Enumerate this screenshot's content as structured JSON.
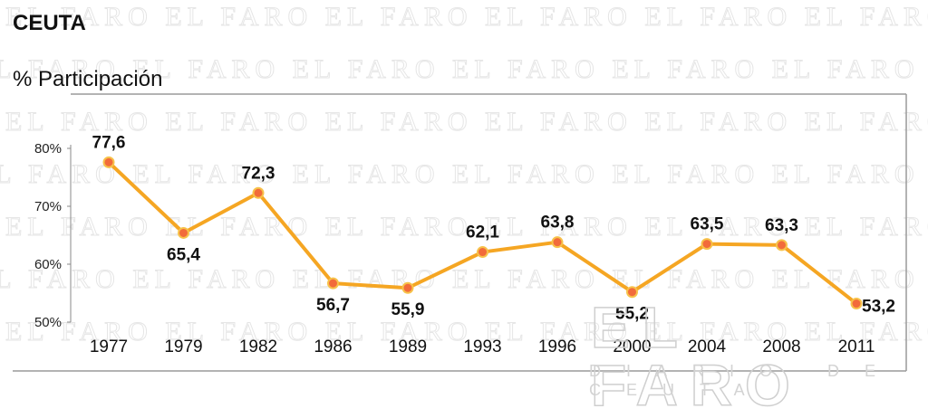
{
  "watermark_text": "EL FARO",
  "logo": {
    "text": "EL FARO",
    "subtext": "DIARIO DE CEUTA"
  },
  "chart_data": {
    "type": "line",
    "title": "CEUTA",
    "ylabel": "% Participación",
    "categories": [
      "1977",
      "1979",
      "1982",
      "1986",
      "1989",
      "1993",
      "1996",
      "2000",
      "2004",
      "2008",
      "2011"
    ],
    "series": [
      {
        "values": [
          77.6,
          65.4,
          72.3,
          56.7,
          55.9,
          62.1,
          63.8,
          55.2,
          63.5,
          63.3,
          53.2
        ],
        "labels": [
          "77,6",
          "65,4",
          "72,3",
          "56,7",
          "55,9",
          "62,1",
          "63,8",
          "55,2",
          "63,5",
          "63,3",
          "53,2"
        ],
        "label_positions": [
          "above",
          "below",
          "above",
          "below",
          "below",
          "above",
          "above",
          "below",
          "above",
          "above",
          "right"
        ],
        "color": "#f5a623",
        "marker_fill": "#f26b3a"
      }
    ],
    "ylim": [
      50,
      80
    ],
    "yticks": [
      50,
      60,
      70,
      80
    ],
    "ytick_labels": [
      "50%",
      "60%",
      "70%",
      "80%"
    ],
    "grid": false,
    "legend": "none"
  }
}
